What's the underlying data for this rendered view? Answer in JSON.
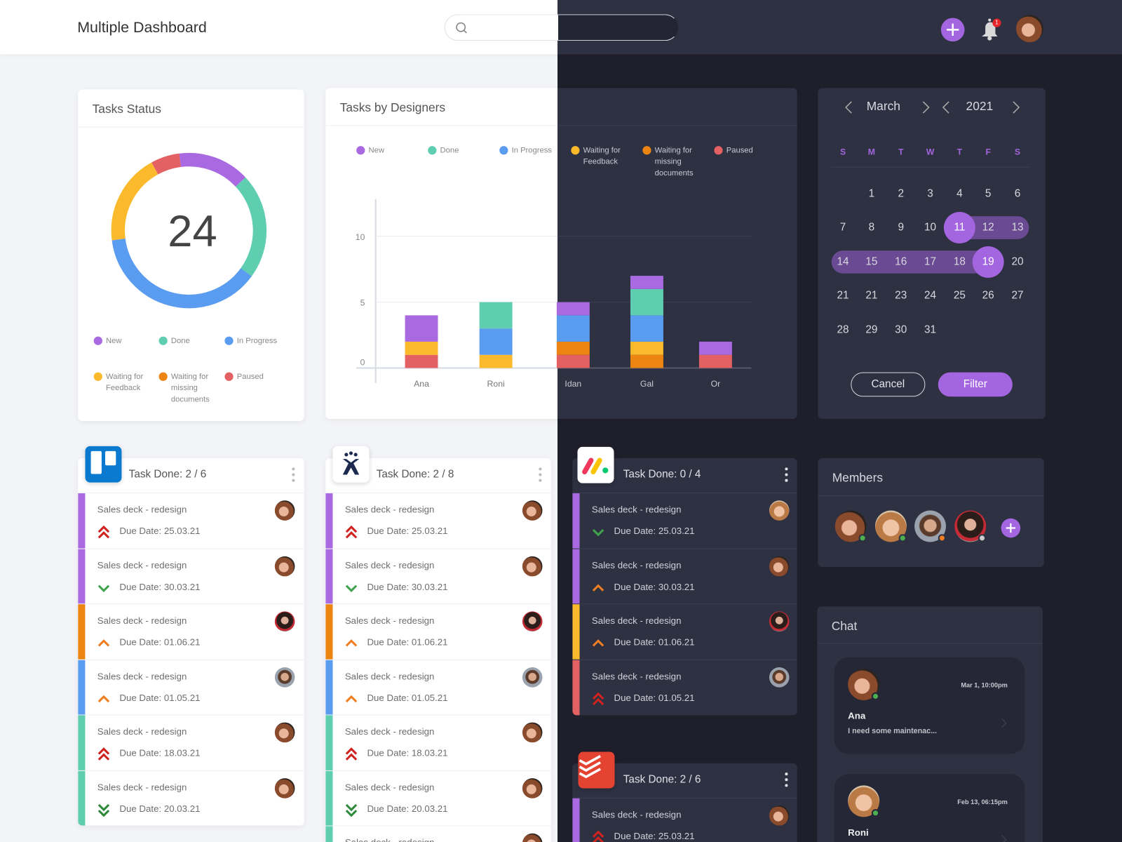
{
  "header": {
    "title": "Multiple Dashboard",
    "search_placeholder": "",
    "notification_count": "1",
    "add_icon": "plus-icon",
    "bell_icon": "bell-icon"
  },
  "colors": {
    "accent": "#a466e0",
    "New": "#a869e1",
    "Done": "#5ecdb0",
    "In Progress": "#5a9cf0",
    "Waiting for Feedback": "#fbb92c",
    "Waiting for missing documents": "#ec8412",
    "Paused": "#e36162"
  },
  "statuses": [
    "New",
    "Done",
    "In Progress",
    "Waiting for Feedback",
    "Waiting for missing documents",
    "Paused"
  ],
  "tasks_status": {
    "title": "Tasks Status",
    "total": "24",
    "shares_percent": {
      "New": 15,
      "Done": 22,
      "In Progress": 38,
      "Waiting for Feedback": 19,
      "Paused": 6
    }
  },
  "chart_data": {
    "type": "bar",
    "stacked": true,
    "title": "Tasks by Designers",
    "categories": [
      "Ana",
      "Roni",
      "Idan",
      "Gal",
      "Or"
    ],
    "yticks": [
      "0",
      "5",
      "10"
    ],
    "ylim": [
      0,
      10
    ],
    "grid": true,
    "legend": "top",
    "series": [
      {
        "name": "Paused",
        "values": [
          1,
          0,
          1,
          0,
          1
        ]
      },
      {
        "name": "Waiting for missing documents",
        "values": [
          0,
          0,
          1,
          1,
          0
        ]
      },
      {
        "name": "Waiting for Feedback",
        "values": [
          1,
          1,
          0,
          1,
          0
        ]
      },
      {
        "name": "In Progress",
        "values": [
          0,
          2,
          2,
          2,
          0
        ]
      },
      {
        "name": "Done",
        "values": [
          0,
          2,
          0,
          2,
          0
        ]
      },
      {
        "name": "New",
        "values": [
          2,
          0,
          1,
          1,
          1
        ]
      }
    ]
  },
  "calendar": {
    "month": "March",
    "year": "2021",
    "weekdays": [
      "S",
      "M",
      "T",
      "W",
      "T",
      "F",
      "S"
    ],
    "weeks": [
      [
        "",
        "1",
        "2",
        "3",
        "4",
        "5",
        "6"
      ],
      [
        "7",
        "8",
        "9",
        "10",
        "11",
        "12",
        "13"
      ],
      [
        "14",
        "15",
        "16",
        "17",
        "18",
        "19",
        "20"
      ],
      [
        "21",
        "21",
        "23",
        "24",
        "25",
        "26",
        "27"
      ],
      [
        "28",
        "29",
        "30",
        "31",
        "",
        "",
        ""
      ]
    ],
    "range_start": "11",
    "range_end": "19",
    "cancel_label": "Cancel",
    "filter_label": "Filter"
  },
  "members": {
    "title": "Members",
    "people": [
      {
        "status": "online",
        "status_color": "#4caf50"
      },
      {
        "status": "online",
        "status_color": "#4caf50"
      },
      {
        "status": "away",
        "status_color": "#ef7d22"
      },
      {
        "status": "offline",
        "status_color": "#cccccc"
      }
    ]
  },
  "chat": {
    "title": "Chat",
    "messages": [
      {
        "name": "Ana",
        "time": "Mar 1, 10:00pm",
        "text": "I need some maintenac..."
      },
      {
        "name": "Roni",
        "time": "Feb 13, 06:15pm",
        "text": ""
      }
    ]
  },
  "boards": [
    {
      "app": "trello",
      "title": "Task Done: 2 / 6",
      "rows": [
        {
          "title": "Sales deck - redesign",
          "due": "Due Date: 25.03.21",
          "priority": "highest",
          "status": "New",
          "avatar": "a"
        },
        {
          "title": "Sales deck - redesign",
          "due": "Due Date: 30.03.21",
          "priority": "low",
          "status": "New",
          "avatar": "a"
        },
        {
          "title": "Sales deck - redesign",
          "due": "Due Date: 01.06.21",
          "priority": "medium",
          "status": "Waiting for missing documents",
          "avatar": "d"
        },
        {
          "title": "Sales deck - redesign",
          "due": "Due Date: 01.05.21",
          "priority": "medium",
          "status": "In Progress",
          "avatar": "c"
        },
        {
          "title": "Sales deck - redesign",
          "due": "Due Date: 18.03.21",
          "priority": "highest",
          "status": "Done",
          "avatar": "a"
        },
        {
          "title": "Sales deck - redesign",
          "due": "Due Date: 20.03.21",
          "priority": "lowest",
          "status": "Done",
          "avatar": "a"
        }
      ]
    },
    {
      "app": "jira",
      "title": "Task Done: 2 / 8",
      "rows": [
        {
          "title": "Sales deck - redesign",
          "due": "Due Date: 25.03.21",
          "priority": "highest",
          "status": "New",
          "avatar": "a"
        },
        {
          "title": "Sales deck - redesign",
          "due": "Due Date: 30.03.21",
          "priority": "low",
          "status": "New",
          "avatar": "a"
        },
        {
          "title": "Sales deck - redesign",
          "due": "Due Date: 01.06.21",
          "priority": "medium",
          "status": "Waiting for missing documents",
          "avatar": "d"
        },
        {
          "title": "Sales deck - redesign",
          "due": "Due Date: 01.05.21",
          "priority": "medium",
          "status": "In Progress",
          "avatar": "c"
        },
        {
          "title": "Sales deck - redesign",
          "due": "Due Date: 18.03.21",
          "priority": "highest",
          "status": "Done",
          "avatar": "a"
        },
        {
          "title": "Sales deck - redesign",
          "due": "Due Date: 20.03.21",
          "priority": "lowest",
          "status": "Done",
          "avatar": "a"
        },
        {
          "title": "Sales deck - redesign",
          "due": "",
          "priority": "",
          "status": "Done",
          "avatar": "a"
        }
      ]
    },
    {
      "app": "monday",
      "title": "Task Done: 0 / 4",
      "rows": [
        {
          "title": "Sales deck - redesign",
          "due": "Due Date: 25.03.21",
          "priority": "low",
          "status": "New",
          "avatar": "b"
        },
        {
          "title": "Sales deck - redesign",
          "due": "Due Date: 30.03.21",
          "priority": "medium",
          "status": "New",
          "avatar": "a"
        },
        {
          "title": "Sales deck - redesign",
          "due": "Due Date: 01.06.21",
          "priority": "medium",
          "status": "Waiting for Feedback",
          "avatar": "d"
        },
        {
          "title": "Sales deck - redesign",
          "due": "Due Date: 01.05.21",
          "priority": "highest",
          "status": "Paused",
          "avatar": "c"
        }
      ]
    },
    {
      "app": "todoist",
      "title": "Task Done: 2 / 6",
      "rows": [
        {
          "title": "Sales deck - redesign",
          "due": "Due Date: 25.03.21",
          "priority": "highest",
          "status": "New",
          "avatar": "a"
        }
      ]
    }
  ]
}
